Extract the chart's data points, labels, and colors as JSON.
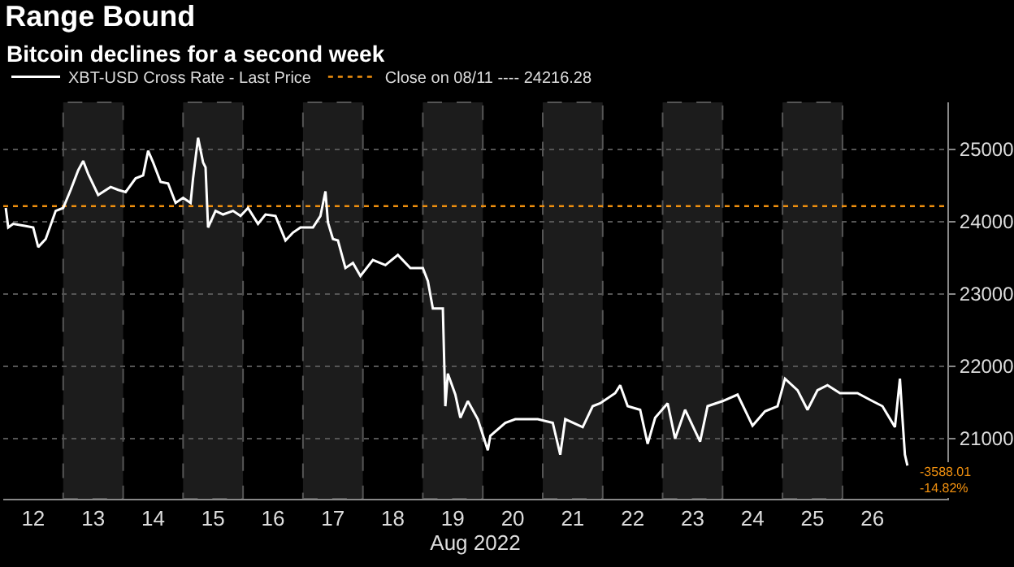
{
  "chart_data": {
    "type": "line",
    "title": "Range Bound",
    "subtitle": "Bitcoin declines for a second week",
    "xlabel": "Aug 2022",
    "x": [
      "2022-08-12T01:00",
      "2022-08-12T02:00",
      "2022-08-12T04:00",
      "2022-08-12T09:00",
      "2022-08-12T12:00",
      "2022-08-12T14:00",
      "2022-08-12T17:00",
      "2022-08-12T21:00",
      "2022-08-13T00:00",
      "2022-08-13T03:00",
      "2022-08-13T06:00",
      "2022-08-13T08:00",
      "2022-08-13T10:00",
      "2022-08-13T14:00",
      "2022-08-13T19:00",
      "2022-08-13T22:00",
      "2022-08-14T01:00",
      "2022-08-14T05:00",
      "2022-08-14T08:00",
      "2022-08-14T10:00",
      "2022-08-14T12:00",
      "2022-08-14T15:00",
      "2022-08-14T18:00",
      "2022-08-14T21:00",
      "2022-08-15T00:00",
      "2022-08-15T03:00",
      "2022-08-15T04:00",
      "2022-08-15T06:00",
      "2022-08-15T08:00",
      "2022-08-15T09:00",
      "2022-08-15T10:00",
      "2022-08-15T13:00",
      "2022-08-15T16:00",
      "2022-08-15T20:00",
      "2022-08-15T23:00",
      "2022-08-16T02:00",
      "2022-08-16T06:00",
      "2022-08-16T09:00",
      "2022-08-16T13:00",
      "2022-08-16T17:00",
      "2022-08-16T20:00",
      "2022-08-16T23:00",
      "2022-08-17T04:00",
      "2022-08-17T07:00",
      "2022-08-17T09:00",
      "2022-08-17T10:00",
      "2022-08-17T12:00",
      "2022-08-17T14:00",
      "2022-08-17T17:00",
      "2022-08-17T20:00",
      "2022-08-17T23:00",
      "2022-08-18T04:00",
      "2022-08-18T09:00",
      "2022-08-18T14:00",
      "2022-08-18T19:00",
      "2022-08-19T00:00",
      "2022-08-19T02:00",
      "2022-08-19T04:00",
      "2022-08-19T08:00",
      "2022-08-19T09:00",
      "2022-08-19T10:00",
      "2022-08-19T13:00",
      "2022-08-19T15:00",
      "2022-08-19T18:00",
      "2022-08-19T22:00",
      "2022-08-20T02:00",
      "2022-08-20T03:00",
      "2022-08-20T09:00",
      "2022-08-20T13:00",
      "2022-08-20T16:00",
      "2022-08-20T22:00",
      "2022-08-21T04:00",
      "2022-08-21T07:00",
      "2022-08-21T09:00",
      "2022-08-21T16:00",
      "2022-08-21T20:00",
      "2022-08-21T23:00",
      "2022-08-22T05:00",
      "2022-08-22T07:00",
      "2022-08-22T10:00",
      "2022-08-22T15:00",
      "2022-08-22T18:00",
      "2022-08-22T21:00",
      "2022-08-23T02:00",
      "2022-08-23T05:00",
      "2022-08-23T09:00",
      "2022-08-23T15:00",
      "2022-08-23T18:00",
      "2022-08-24T00:00",
      "2022-08-24T06:00",
      "2022-08-24T12:00",
      "2022-08-24T17:00",
      "2022-08-24T22:00",
      "2022-08-25T01:00",
      "2022-08-25T06:00",
      "2022-08-25T10:00",
      "2022-08-25T14:00",
      "2022-08-25T18:00",
      "2022-08-25T23:00",
      "2022-08-26T06:00",
      "2022-08-26T12:00",
      "2022-08-26T16:00",
      "2022-08-26T21:00",
      "2022-08-26T23:00",
      "2022-08-27T00:00",
      "2022-08-27T01:00",
      "2022-08-27T02:00"
    ],
    "series": [
      {
        "name": "XBT-USD Cross Rate - Last Price",
        "color": "#ffffff",
        "values": [
          24190,
          23920,
          23970,
          23940,
          23920,
          23650,
          23760,
          24150,
          24190,
          24440,
          24710,
          24840,
          24660,
          24370,
          24480,
          24440,
          24410,
          24600,
          24640,
          24980,
          24820,
          24550,
          24530,
          24260,
          24330,
          24260,
          24600,
          25160,
          24820,
          24750,
          23920,
          24150,
          24100,
          24150,
          24080,
          24190,
          23970,
          24100,
          24080,
          23740,
          23850,
          23920,
          23920,
          24080,
          24420,
          23990,
          23760,
          23740,
          23360,
          23430,
          23250,
          23470,
          23400,
          23540,
          23360,
          23360,
          23180,
          22800,
          22800,
          21450,
          21900,
          21610,
          21290,
          21520,
          21270,
          20840,
          21040,
          21220,
          21270,
          21270,
          21270,
          21220,
          20780,
          21270,
          21160,
          21450,
          21490,
          21630,
          21740,
          21450,
          21400,
          20930,
          21290,
          21490,
          21000,
          21400,
          20960,
          21450,
          21520,
          21610,
          21180,
          21380,
          21450,
          21830,
          21670,
          21400,
          21670,
          21740,
          21630,
          21630,
          21520,
          21450,
          21160,
          21830,
          21290,
          20780,
          20630
        ]
      }
    ],
    "ref_lines": [
      {
        "axis": "y",
        "value": 24216.28,
        "label": "Close on 08/11 ---- 24216.28",
        "color": "#f0900f",
        "line_style": "dotted"
      }
    ],
    "bands": [
      {
        "axis": "x",
        "from": "2022-08-13",
        "to": "2022-08-14",
        "color": "#1c1c1c"
      },
      {
        "axis": "x",
        "from": "2022-08-15",
        "to": "2022-08-16",
        "color": "#1c1c1c"
      },
      {
        "axis": "x",
        "from": "2022-08-17",
        "to": "2022-08-18",
        "color": "#1c1c1c"
      },
      {
        "axis": "x",
        "from": "2022-08-19",
        "to": "2022-08-20",
        "color": "#1c1c1c"
      },
      {
        "axis": "x",
        "from": "2022-08-21",
        "to": "2022-08-22",
        "color": "#1c1c1c"
      },
      {
        "axis": "x",
        "from": "2022-08-23",
        "to": "2022-08-24",
        "color": "#1c1c1c"
      },
      {
        "axis": "x",
        "from": "2022-08-25",
        "to": "2022-08-26",
        "color": "#1c1c1c"
      }
    ],
    "annotations": [
      "-3588.01",
      "-14.82%"
    ],
    "xlim": [
      "2022-08-12T00:00",
      "2022-08-27T18:00"
    ],
    "xticks": [
      {
        "value": "2022-08-12T12:00",
        "label": "12"
      },
      {
        "value": "2022-08-13T12:00",
        "label": "13"
      },
      {
        "value": "2022-08-14T12:00",
        "label": "14"
      },
      {
        "value": "2022-08-15T12:00",
        "label": "15"
      },
      {
        "value": "2022-08-16T12:00",
        "label": "16"
      },
      {
        "value": "2022-08-17T12:00",
        "label": "17"
      },
      {
        "value": "2022-08-18T12:00",
        "label": "18"
      },
      {
        "value": "2022-08-19T12:00",
        "label": "19"
      },
      {
        "value": "2022-08-20T12:00",
        "label": "20"
      },
      {
        "value": "2022-08-21T12:00",
        "label": "21"
      },
      {
        "value": "2022-08-22T12:00",
        "label": "22"
      },
      {
        "value": "2022-08-23T12:00",
        "label": "23"
      },
      {
        "value": "2022-08-24T12:00",
        "label": "24"
      },
      {
        "value": "2022-08-25T12:00",
        "label": "25"
      },
      {
        "value": "2022-08-26T12:00",
        "label": "26"
      }
    ],
    "ylim": [
      20170,
      25650
    ],
    "yticks": [
      21000,
      22000,
      23000,
      24000,
      25000
    ],
    "grid": "y",
    "legend": "top left",
    "marker": "none",
    "line_style": "solid"
  }
}
